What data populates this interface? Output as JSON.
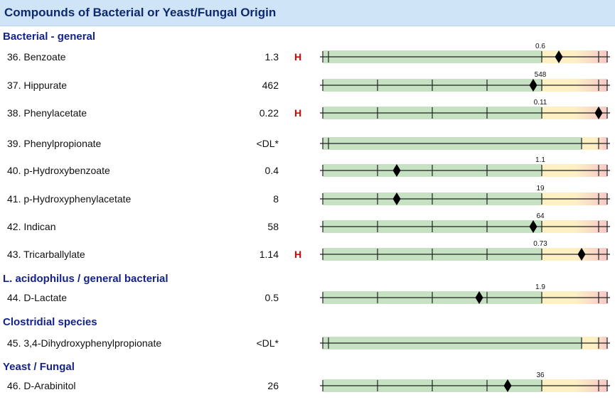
{
  "header": {
    "title": "Compounds of Bacterial or Yeast/Fungal Origin"
  },
  "sections": {
    "bacterial": "Bacterial - general",
    "lacto": "L. acidophilus / general bacterial",
    "clostridia": "Clostridial species",
    "yeast": "Yeast / Fungal"
  },
  "rows": [
    {
      "name": "36. Benzoate",
      "value": "1.3",
      "flag": "H",
      "ref_label": "0.6",
      "marker_pct": 0.83,
      "green_end": 0.77,
      "divisions": 1
    },
    {
      "name": "37. Hippurate",
      "value": "462",
      "flag": "",
      "ref_label": "548",
      "marker_pct": 0.74,
      "green_end": 0.77,
      "divisions": 4
    },
    {
      "name": "38. Phenylacetate",
      "value": "0.22",
      "flag": "H",
      "ref_label": "0.11",
      "marker_pct": 0.97,
      "green_end": 0.77,
      "divisions": 4
    },
    {
      "name": "39. Phenylpropionate",
      "value": "<DL*",
      "flag": "",
      "ref_label": "",
      "marker_pct": null,
      "green_end": 0.91,
      "divisions": 1
    },
    {
      "name": "40. p-Hydroxybenzoate",
      "value": "0.4",
      "flag": "",
      "ref_label": "1.1",
      "marker_pct": 0.26,
      "green_end": 0.77,
      "divisions": 4
    },
    {
      "name": "41. p-Hydroxyphenylacetate",
      "value": "8",
      "flag": "",
      "ref_label": "19",
      "marker_pct": 0.26,
      "green_end": 0.77,
      "divisions": 4
    },
    {
      "name": "42. Indican",
      "value": "58",
      "flag": "",
      "ref_label": "64",
      "marker_pct": 0.74,
      "green_end": 0.77,
      "divisions": 4
    },
    {
      "name": "43. Tricarballylate",
      "value": "1.14",
      "flag": "H",
      "ref_label": "0.73",
      "marker_pct": 0.91,
      "green_end": 0.77,
      "divisions": 4
    },
    {
      "name": "44. D-Lactate",
      "value": "0.5",
      "flag": "",
      "ref_label": "1.9",
      "marker_pct": 0.55,
      "green_end": 0.77,
      "divisions": 4
    },
    {
      "name": "45. 3,4-Dihydroxyphenylpropionate",
      "value": "<DL*",
      "flag": "",
      "ref_label": "",
      "marker_pct": null,
      "green_end": 0.91,
      "divisions": 1
    },
    {
      "name": "46. D-Arabinitol",
      "value": "26",
      "flag": "",
      "ref_label": "36",
      "marker_pct": 0.65,
      "green_end": 0.77,
      "divisions": 4
    }
  ],
  "colors": {
    "green": "#c6e2c2",
    "yellow": "#fdf1c4",
    "red": "#f6c8c8",
    "flag": "#e00000",
    "section": "#14238a",
    "header_bg": "#cfe4f7"
  }
}
